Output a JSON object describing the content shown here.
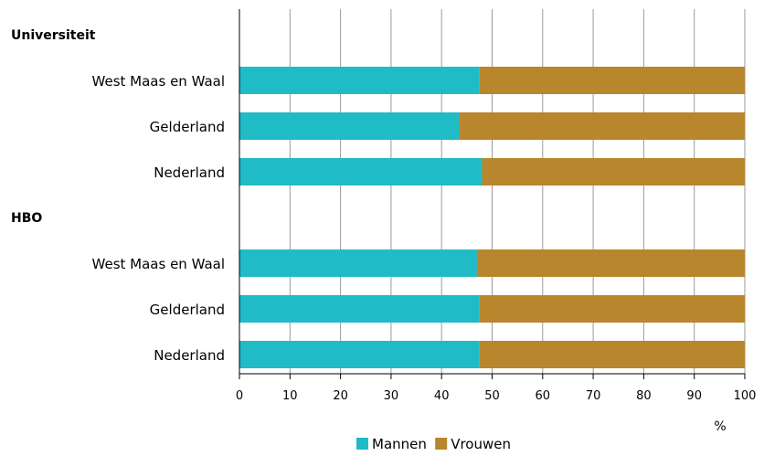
{
  "chart_data": {
    "type": "bar",
    "orientation": "horizontal",
    "stacked": true,
    "groups": [
      {
        "label": "Universiteit",
        "categories": [
          "West Maas en Waal",
          "Gelderland",
          "Nederland"
        ],
        "series": [
          {
            "name": "Mannen",
            "values": [
              47.5,
              43.5,
              48
            ]
          },
          {
            "name": "Vrouwen",
            "values": [
              52.5,
              56.5,
              52
            ]
          }
        ]
      },
      {
        "label": "HBO",
        "categories": [
          "West Maas en Waal",
          "Gelderland",
          "Nederland"
        ],
        "series": [
          {
            "name": "Mannen",
            "values": [
              47,
              47.5,
              47.5
            ]
          },
          {
            "name": "Vrouwen",
            "values": [
              53,
              52.5,
              52.5
            ]
          }
        ]
      }
    ],
    "xlim": [
      0,
      100
    ],
    "xticks": [
      "0",
      "10",
      "20",
      "30",
      "40",
      "50",
      "60",
      "70",
      "80",
      "90",
      "100"
    ],
    "unit": "%",
    "grid": true,
    "legend": {
      "position": "bottom",
      "items": [
        {
          "name": "Mannen",
          "color": "#1fbbc6"
        },
        {
          "name": "Vrouwen",
          "color": "#b8862d"
        }
      ]
    }
  }
}
